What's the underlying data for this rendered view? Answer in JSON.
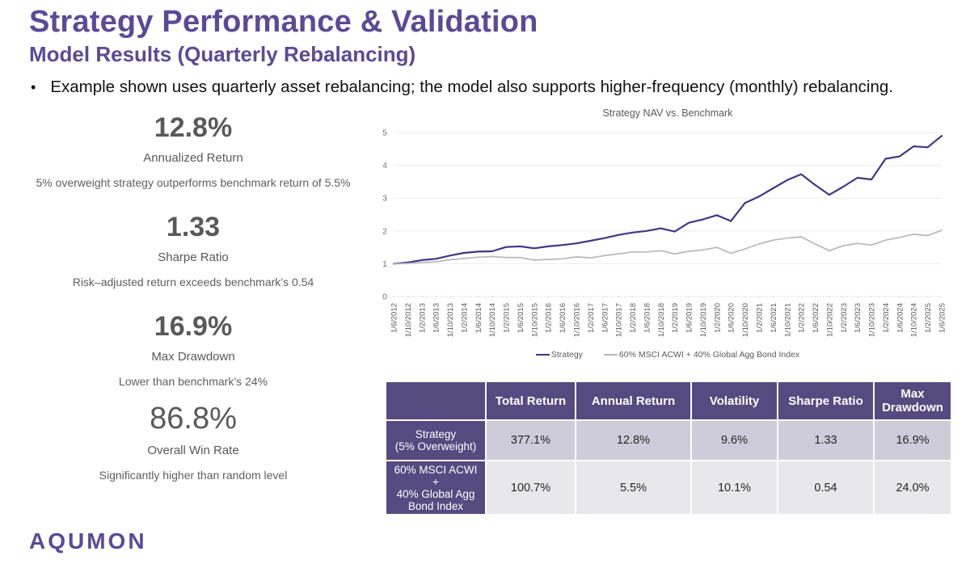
{
  "header": {
    "title": "Strategy Performance & Validation",
    "subtitle": "Model Results (Quarterly Rebalancing)",
    "bullet_marker": "•",
    "bullet": "Example shown uses quarterly asset rebalancing; the model also supports higher-frequency (monthly) rebalancing."
  },
  "metrics": [
    {
      "value": "12.8%",
      "label": "Annualized Return",
      "desc": "5% overweight strategy outperforms benchmark return of 5.5%"
    },
    {
      "value": "1.33",
      "label": "Sharpe Ratio",
      "desc": "Risk–adjusted return exceeds benchmark’s 0.54"
    },
    {
      "value": "16.9%",
      "label": "Max Drawdown",
      "desc": "Lower than benchmark’s 24%"
    },
    {
      "value": "86.8%",
      "label": "Overall Win Rate",
      "desc": "Significantly higher than random level"
    }
  ],
  "chart_data": {
    "type": "line",
    "title": "Strategy NAV vs. Benchmark",
    "x": [
      "1/6/2012",
      "1/10/2012",
      "1/2/2013",
      "1/6/2013",
      "1/10/2013",
      "1/2/2014",
      "1/6/2014",
      "1/10/2014",
      "1/2/2015",
      "1/6/2015",
      "1/10/2015",
      "1/2/2016",
      "1/6/2016",
      "1/10/2016",
      "1/2/2017",
      "1/6/2017",
      "1/10/2017",
      "1/2/2018",
      "1/6/2018",
      "1/10/2018",
      "1/2/2019",
      "1/6/2019",
      "1/10/2019",
      "1/2/2020",
      "1/6/2020",
      "1/10/2020",
      "1/2/2021",
      "1/6/2021",
      "1/10/2021",
      "1/2/2022",
      "1/6/2022",
      "1/10/2022",
      "1/2/2023",
      "1/6/2023",
      "1/10/2023",
      "1/2/2024",
      "1/6/2024",
      "1/10/2024",
      "1/2/2025",
      "1/6/2025"
    ],
    "series": [
      {
        "name": "Strategy",
        "color": "#413687",
        "values": [
          1.0,
          1.04,
          1.11,
          1.15,
          1.25,
          1.33,
          1.37,
          1.38,
          1.51,
          1.53,
          1.47,
          1.53,
          1.57,
          1.62,
          1.7,
          1.78,
          1.88,
          1.95,
          2.0,
          2.08,
          1.98,
          2.25,
          2.35,
          2.48,
          2.3,
          2.85,
          3.05,
          3.3,
          3.55,
          3.73,
          3.4,
          3.1,
          3.35,
          3.62,
          3.57,
          4.2,
          4.27,
          4.58,
          4.55,
          4.9
        ]
      },
      {
        "name": "60% MSCI ACWI + 40% Global Agg Bond Index",
        "color": "#b7b7b7",
        "values": [
          1.0,
          1.01,
          1.04,
          1.06,
          1.12,
          1.16,
          1.2,
          1.22,
          1.19,
          1.19,
          1.11,
          1.13,
          1.15,
          1.21,
          1.18,
          1.25,
          1.3,
          1.36,
          1.36,
          1.4,
          1.3,
          1.38,
          1.42,
          1.5,
          1.32,
          1.45,
          1.6,
          1.72,
          1.78,
          1.82,
          1.6,
          1.4,
          1.55,
          1.62,
          1.57,
          1.72,
          1.8,
          1.9,
          1.86,
          2.02
        ]
      }
    ],
    "ylim": [
      0,
      5
    ],
    "yticks": [
      0,
      1,
      2,
      3,
      4,
      5
    ],
    "xlabel": "",
    "ylabel": "",
    "grid": true,
    "legend_position": "bottom"
  },
  "table": {
    "header": [
      "",
      "Total Return",
      "Annual Return",
      "Volatility",
      "Sharpe Ratio",
      "Max Drawdown"
    ],
    "rows": [
      {
        "label_lines": [
          "Strategy",
          "(5% Overweight)"
        ],
        "values": [
          "377.1%",
          "12.8%",
          "9.6%",
          "1.33",
          "16.9%"
        ]
      },
      {
        "label_lines": [
          "60% MSCI ACWI",
          "+",
          "40% Global Agg",
          "Bond Index"
        ],
        "values": [
          "100.7%",
          "5.5%",
          "10.1%",
          "0.54",
          "24.0%"
        ]
      }
    ]
  },
  "logo": "AQUMON",
  "colors": {
    "accent_purple": "#5a4a96",
    "table_purple": "#564a80",
    "row1_bg": "#cfccd9",
    "row2_bg": "#e9e7ee",
    "text_gray": "#595959"
  }
}
